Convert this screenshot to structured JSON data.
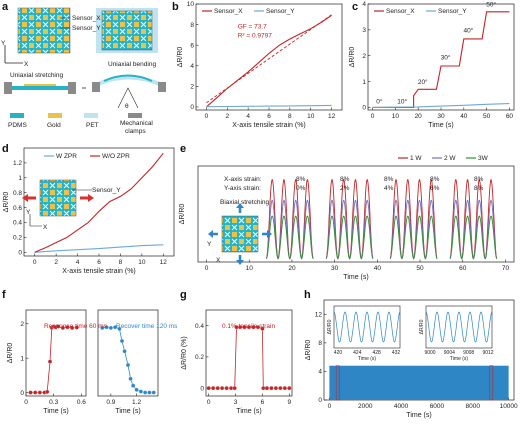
{
  "colors": {
    "red": "#c0252a",
    "blue": "#2f86c5",
    "lightblue": "#7fb2d8",
    "green": "#3a8a3a",
    "purple": "#7a6fbf",
    "pdms": "#26b3c6",
    "gold": "#e8c24a",
    "pet": "#bfe3ef",
    "clamp": "#8a8a8a"
  },
  "panel_a": {
    "letter": "a",
    "sensor_x": "Sensor_X",
    "sensor_y": "Sensor_Y",
    "axis_y": "Y",
    "axis_x": "X",
    "uniaxial_stretching": "Uniaxial stretching",
    "uniaxial_bending": "Uniaxial bending",
    "theta": "θ",
    "legend": [
      "PDMS",
      "Gold",
      "PET",
      "Mechanical clamps"
    ]
  },
  "panel_letters": {
    "b": "b",
    "c": "c",
    "d": "d",
    "e": "e",
    "f": "f",
    "g": "g",
    "h": "h"
  },
  "panel_e": {
    "biaxial": "Biaxial stretching",
    "x_label": "X-axis strain:",
    "y_label": "Y-axis strain:",
    "x_strains": [
      "8%",
      "8%",
      "8%",
      "8%",
      "8%"
    ],
    "y_strains": [
      "0%",
      "2%",
      "4%",
      "6%",
      "8%"
    ],
    "axis_y": "Y",
    "axis_x": "X"
  },
  "panel_f": {
    "left_label": "Response time 60 ms",
    "right_label": "Recover time 120 ms"
  },
  "panel_g": {
    "label": "0.1% tensile strain"
  },
  "panel_d": {
    "sensor_y": "Sensor_Y",
    "axis_y": "Y",
    "axis_x": "X"
  },
  "chart_data": [
    {
      "id": "b",
      "type": "line",
      "xlabel": "X-axis tensile strain (%)",
      "ylabel": "ΔR/R0",
      "xlim": [
        -1,
        13
      ],
      "ylim": [
        -0.3,
        10
      ],
      "xticks": [
        0,
        2,
        4,
        6,
        8,
        10,
        12
      ],
      "yticks": [
        0,
        2,
        4,
        6,
        8,
        10
      ],
      "series": [
        {
          "name": "Sensor_X",
          "color": "#c0252a",
          "x": [
            0,
            1,
            2,
            3,
            4,
            5,
            6,
            7,
            8,
            9,
            10,
            11,
            12
          ],
          "values": [
            0,
            0.9,
            1.8,
            2.6,
            3.4,
            4.3,
            5.2,
            6.0,
            6.6,
            7.1,
            7.6,
            8.2,
            8.9
          ]
        },
        {
          "name": "Sensor_Y",
          "color": "#6fa8d6",
          "x": [
            0,
            2,
            4,
            6,
            8,
            10,
            12
          ],
          "values": [
            0.02,
            0.04,
            0.06,
            0.08,
            0.1,
            0.12,
            0.15
          ]
        }
      ],
      "fit": {
        "color": "#c0252a",
        "x": [
          0,
          12
        ],
        "values": [
          0.4,
          8.96
        ]
      },
      "annotations": [
        "GF = 73.7",
        "R² = 0.9797"
      ]
    },
    {
      "id": "c",
      "type": "line",
      "xlabel": "Time (s)",
      "ylabel": "ΔR/R0",
      "xlim": [
        -2,
        62
      ],
      "ylim": [
        -0.1,
        4
      ],
      "xticks": [
        0,
        10,
        20,
        30,
        40,
        50,
        60
      ],
      "yticks": [
        0,
        1,
        2,
        3,
        4
      ],
      "series": [
        {
          "name": "Sensor_X",
          "color": "#c0252a",
          "x": [
            0,
            18,
            18,
            20,
            28,
            30,
            38,
            40,
            48,
            50,
            60
          ],
          "values": [
            0,
            0,
            0.45,
            0.7,
            0.7,
            1.6,
            1.6,
            2.65,
            2.65,
            3.7,
            3.7
          ]
        },
        {
          "name": "Sensor_Y",
          "color": "#6fa8d6",
          "x": [
            0,
            20,
            30,
            40,
            50,
            60
          ],
          "values": [
            0,
            0.02,
            0.05,
            0.08,
            0.12,
            0.15
          ]
        }
      ],
      "step_labels": [
        {
          "t": "0°",
          "x": 3,
          "y": 0.15
        },
        {
          "t": "10°",
          "x": 13,
          "y": 0.15
        },
        {
          "t": "20°",
          "x": 22,
          "y": 0.9
        },
        {
          "t": "30°",
          "x": 32,
          "y": 1.85
        },
        {
          "t": "40°",
          "x": 42,
          "y": 2.9
        },
        {
          "t": "50°",
          "x": 52,
          "y": 3.9
        }
      ]
    },
    {
      "id": "d",
      "type": "line",
      "xlabel": "X-axis tensile strain (%)",
      "ylabel": "ΔR/R0",
      "xlim": [
        -1,
        13
      ],
      "ylim": [
        -0.05,
        1.4
      ],
      "xticks": [
        0,
        2,
        4,
        6,
        8,
        10,
        12
      ],
      "yticks": [
        0.0,
        0.2,
        0.4,
        0.6,
        0.8,
        1.0,
        1.2
      ],
      "series": [
        {
          "name": "W ZPR",
          "color": "#6fa8d6",
          "x": [
            0,
            2,
            4,
            6,
            8,
            10,
            12
          ],
          "values": [
            0,
            0.02,
            0.035,
            0.05,
            0.07,
            0.09,
            0.1
          ]
        },
        {
          "name": "W/O ZPR",
          "color": "#c0252a",
          "x": [
            0,
            1,
            2,
            3,
            4,
            5,
            6,
            7,
            8,
            9,
            10,
            11,
            12
          ],
          "values": [
            0,
            0.06,
            0.13,
            0.2,
            0.3,
            0.4,
            0.55,
            0.68,
            0.75,
            0.85,
            1.0,
            1.15,
            1.33
          ]
        }
      ]
    },
    {
      "id": "e",
      "type": "line",
      "xlabel": "Time (s)",
      "ylabel": "ΔR/R0",
      "xlim": [
        -2,
        72
      ],
      "ylim": [
        -0.05,
        1.35
      ],
      "xticks": [
        0,
        10,
        20,
        30,
        40,
        50,
        60,
        70
      ],
      "yticks": [],
      "series": [
        {
          "name": "1 W",
          "color": "#c0252a",
          "peak": 1.15
        },
        {
          "name": "2 W",
          "color": "#7a6fbf",
          "peak": 0.85
        },
        {
          "name": "3W",
          "color": "#3a8a3a",
          "peak": 0.62
        }
      ],
      "bursts": [
        [
          14,
          25
        ],
        [
          28,
          39
        ],
        [
          43,
          54
        ],
        [
          57,
          68
        ]
      ],
      "first_burst": [
        0,
        10
      ]
    },
    {
      "id": "f1",
      "type": "scatter",
      "xlabel": "Time (s)",
      "ylabel": "ΔR/R0",
      "xlim": [
        0,
        0.65
      ],
      "ylim": [
        -0.1,
        2.4
      ],
      "xticks": [
        0.0,
        0.3,
        0.6
      ],
      "yticks": [
        0,
        1,
        2
      ],
      "color": "#c0252a",
      "x": [
        0.05,
        0.1,
        0.15,
        0.2,
        0.23,
        0.26,
        0.28,
        0.3,
        0.32,
        0.35,
        0.4,
        0.45,
        0.5,
        0.55
      ],
      "values": [
        0,
        0,
        0,
        0,
        0.02,
        0.9,
        1.88,
        1.92,
        1.9,
        1.92,
        1.88,
        1.9,
        1.88,
        1.89
      ]
    },
    {
      "id": "f2",
      "type": "scatter",
      "xlabel": "Time (s)",
      "ylabel": "",
      "xlim": [
        0.75,
        1.45
      ],
      "ylim": [
        -0.1,
        2.4
      ],
      "xticks": [
        0.9,
        1.2
      ],
      "yticks": [],
      "color": "#2f86c5",
      "x": [
        0.8,
        0.85,
        0.9,
        0.95,
        1.0,
        1.03,
        1.06,
        1.1,
        1.13,
        1.16,
        1.2,
        1.25,
        1.3,
        1.35,
        1.4
      ],
      "values": [
        1.88,
        1.9,
        1.88,
        1.9,
        1.85,
        1.5,
        1.2,
        0.8,
        0.4,
        0.2,
        0.08,
        0.03,
        0,
        0,
        0
      ]
    },
    {
      "id": "g",
      "type": "scatter",
      "xlabel": "Time (s)",
      "ylabel": "ΔR/R0 (%)",
      "xlim": [
        -0.3,
        9.3
      ],
      "ylim": [
        -0.05,
        0.5
      ],
      "xticks": [
        0,
        3,
        6,
        9
      ],
      "yticks": [
        0.0,
        0.2,
        0.4
      ],
      "color": "#c0252a",
      "x": [
        0,
        0.5,
        1,
        1.5,
        2,
        2.5,
        2.9,
        3.1,
        3.5,
        4,
        4.5,
        5,
        5.5,
        6,
        6.1,
        6.5,
        7,
        7.5,
        8,
        8.5,
        9
      ],
      "values": [
        0,
        0,
        0,
        0,
        0,
        0,
        0,
        0.39,
        0.39,
        0.39,
        0.39,
        0.39,
        0.39,
        0.38,
        0,
        0,
        0,
        0,
        0,
        0,
        0
      ]
    },
    {
      "id": "h",
      "type": "area",
      "xlabel": "Time (s)",
      "ylabel": "ΔR/R0",
      "xlim": [
        -300,
        10300
      ],
      "ylim": [
        0,
        14
      ],
      "xticks": [
        0,
        2000,
        4000,
        6000,
        8000,
        10000
      ],
      "yticks": [
        0,
        4,
        8,
        12
      ],
      "color": "#2f86c5",
      "band": [
        0,
        4.8
      ],
      "insets": [
        {
          "xticks": [
            420,
            424,
            428,
            432
          ],
          "xlabel": "Time (s)",
          "ylabel": "ΔR/R0"
        },
        {
          "xticks": [
            9000,
            9004,
            9008,
            9012
          ],
          "xlabel": "Time (s)",
          "ylabel": "ΔR/R0"
        }
      ]
    }
  ]
}
